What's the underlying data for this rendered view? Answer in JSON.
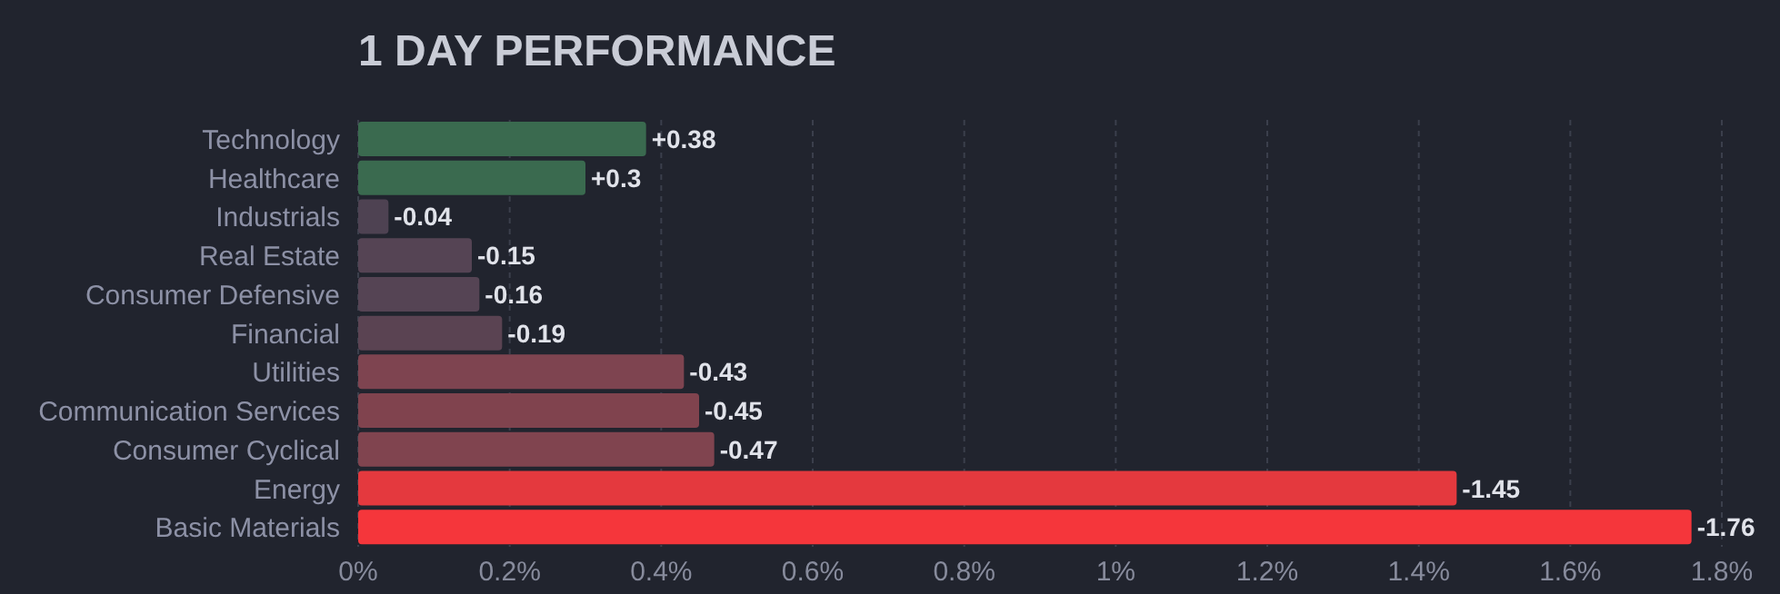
{
  "chart_data": {
    "type": "bar",
    "orientation": "horizontal",
    "title": "1 DAY PERFORMANCE",
    "categories": [
      "Technology",
      "Healthcare",
      "Industrials",
      "Real Estate",
      "Consumer Defensive",
      "Financial",
      "Utilities",
      "Communication Services",
      "Consumer Cyclical",
      "Energy",
      "Basic Materials"
    ],
    "values": [
      0.38,
      0.3,
      -0.04,
      -0.15,
      -0.16,
      -0.19,
      -0.43,
      -0.45,
      -0.47,
      -1.45,
      -1.76
    ],
    "base": [
      0,
      0,
      0.04,
      0.15,
      0.16,
      0.19,
      0.43,
      0.45,
      0.47,
      1.45,
      1.76
    ],
    "value_labels": [
      "+0.38",
      "+0.3",
      "-0.04",
      "-0.15",
      "-0.16",
      "-0.19",
      "-0.43",
      "-0.45",
      "-0.47",
      "-1.45",
      "-1.76"
    ],
    "colors": [
      "#3a6a4f",
      "#3a6a4f",
      "#4e4252",
      "#554454",
      "#554454",
      "#5a4352",
      "#7e4450",
      "#80434e",
      "#80444f",
      "#e4393e",
      "#f5363b"
    ],
    "xlim": [
      0,
      1.8
    ],
    "xticks": [
      {
        "value": 0,
        "label": "0%"
      },
      {
        "value": 0.2,
        "label": "0.2%"
      },
      {
        "value": 0.4,
        "label": "0.4%"
      },
      {
        "value": 0.6,
        "label": "0.6%"
      },
      {
        "value": 0.8,
        "label": "0.8%"
      },
      {
        "value": 1,
        "label": "1%"
      },
      {
        "value": 1.2,
        "label": "1.2%"
      },
      {
        "value": 1.4,
        "label": "1.4%"
      },
      {
        "value": 1.6,
        "label": "1.6%"
      },
      {
        "value": 1.8,
        "label": "1.8%"
      }
    ],
    "grid": "x",
    "legend": false
  }
}
